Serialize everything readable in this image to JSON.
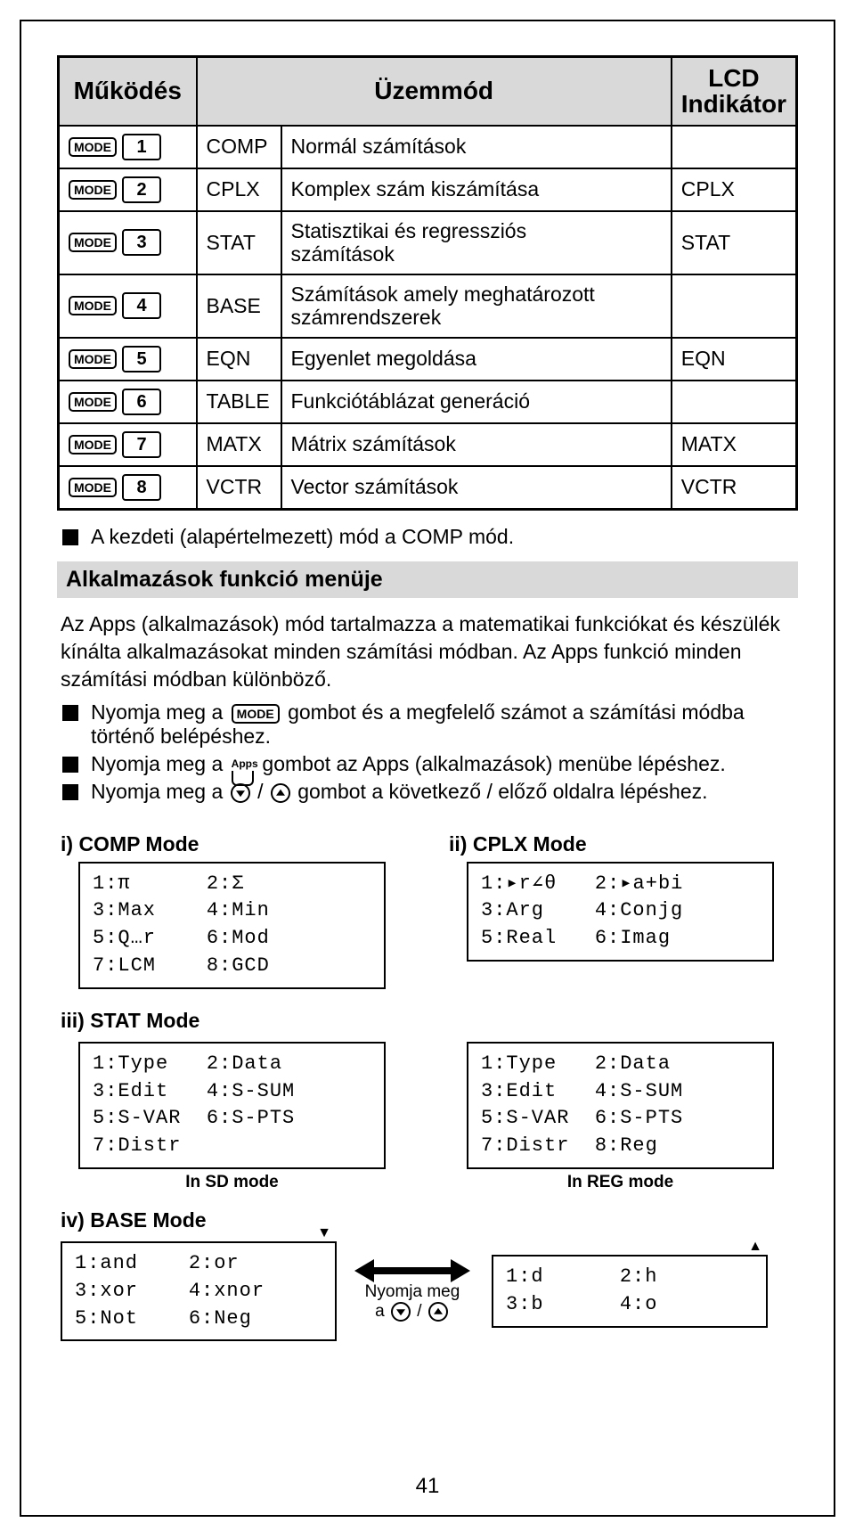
{
  "table": {
    "headers": {
      "ops": "Működés",
      "mode": "Üzemmód",
      "ind": "LCD\nIndikátor"
    },
    "rows": [
      {
        "num": "1",
        "mode": "COMP",
        "desc": "Normál számítások",
        "ind": ""
      },
      {
        "num": "2",
        "mode": "CPLX",
        "desc": "Komplex szám kiszámítása",
        "ind": "CPLX"
      },
      {
        "num": "3",
        "mode": "STAT",
        "desc": "Statisztikai és regressziós\nszámítások",
        "ind": "STAT"
      },
      {
        "num": "4",
        "mode": "BASE",
        "desc": "Számítások amely meghatározott\nszámrendszerek",
        "ind": ""
      },
      {
        "num": "5",
        "mode": "EQN",
        "desc": "Egyenlet megoldása",
        "ind": "EQN"
      },
      {
        "num": "6",
        "mode": "TABLE",
        "desc": "Funkciótáblázat generáció",
        "ind": ""
      },
      {
        "num": "7",
        "mode": "MATX",
        "desc": "Mátrix számítások",
        "ind": "MATX"
      },
      {
        "num": "8",
        "mode": "VCTR",
        "desc": "Vector számítások",
        "ind": "VCTR"
      }
    ],
    "key_label": "MODE"
  },
  "note_default": "A kezdeti (alapértelmezett) mód a COMP mód.",
  "section_apps": "Alkalmazások funkció menüje",
  "para_intro": "Az Apps (alkalmazások) mód tartalmazza a matematikai funkciókat és készülék kínálta alkalmazásokat minden számítási módban. Az Apps funkció minden számítási módban különböző.",
  "b1a": "Nyomja meg a ",
  "b1b": " gombot és a megfelelő számot a számítási módba történő belépéshez.",
  "b2a": "Nyomja meg a ",
  "b2b": " gombot az Apps (alkalmazások) menübe lépéshez.",
  "b3a": "Nyomja meg a ",
  "b3b": " gombot a következő / előző oldalra lépéshez.",
  "slash": " / ",
  "titles": {
    "comp": "i) COMP Mode",
    "cplx": "ii) CPLX Mode",
    "stat": "iii) STAT Mode",
    "base": "iv) BASE Mode"
  },
  "lcd": {
    "comp": "1:π      2:Σ\n3:Max    4:Min\n5:Q…r    6:Mod\n7:LCM    8:GCD",
    "cplx": "1:▸r∠θ   2:▸a+bi\n3:Arg    4:Conjg\n5:Real   6:Imag",
    "stat_sd": "1:Type   2:Data\n3:Edit   4:S-SUM\n5:S-VAR  6:S-PTS\n7:Distr",
    "stat_reg": "1:Type   2:Data\n3:Edit   4:S-SUM\n5:S-VAR  6:S-PTS\n7:Distr  8:Reg",
    "base1": "1:and    2:or\n3:xor    4:xnor\n5:Not    6:Neg",
    "base2": "1:d      2:h\n3:b      4:o"
  },
  "captions": {
    "sd": "In SD mode",
    "reg": "In REG mode"
  },
  "arrow_text_a": "Nyomja meg",
  "arrow_text_b": "a ",
  "page_number": "41"
}
